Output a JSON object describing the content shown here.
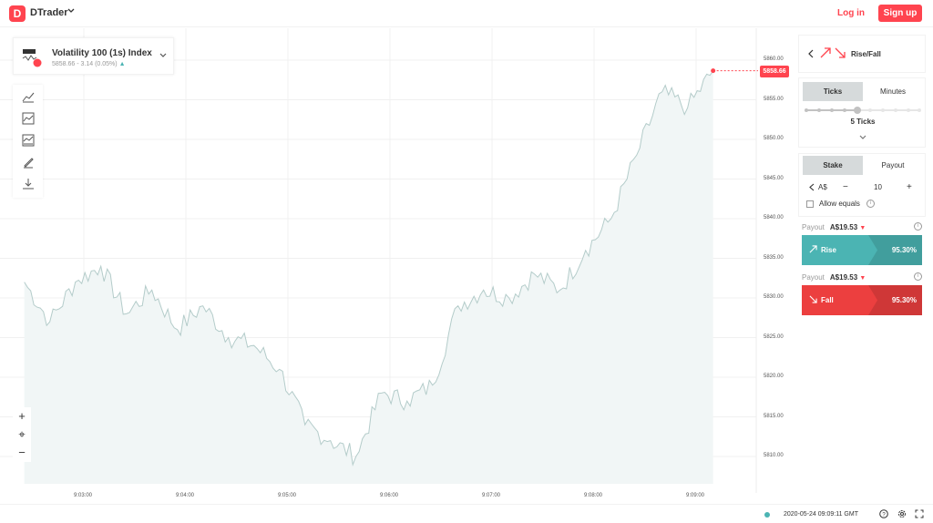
{
  "header": {
    "logo_letter": "D",
    "app_name": "DTrader",
    "login_label": "Log in",
    "signup_label": "Sign up"
  },
  "symbol": {
    "name": "Volatility 100 (1s) Index",
    "price_change": "5858.66 - 3.14 (0.05%)",
    "icon_badge": "1s"
  },
  "chart": {
    "current_price": "5858.66",
    "y_ticks": [
      "5860.00",
      "5855.00",
      "5850.00",
      "5845.00",
      "5840.00",
      "5835.00",
      "5830.00",
      "5825.00",
      "5820.00",
      "5815.00",
      "5810.00"
    ],
    "x_ticks": [
      "9:03:00",
      "9:04:00",
      "9:05:00",
      "9:06:00",
      "9:07:00",
      "9:08:00",
      "9:09:00"
    ],
    "line_color": "#b4ccca",
    "area_color": "#f1f6f6"
  },
  "chart_data": {
    "type": "area",
    "x": [
      "9:02:25",
      "9:02:40",
      "9:02:55",
      "9:03:10",
      "9:03:25",
      "9:03:40",
      "9:03:55",
      "9:04:10",
      "9:04:25",
      "9:04:40",
      "9:04:55",
      "9:05:10",
      "9:05:25",
      "9:05:40",
      "9:05:55",
      "9:06:10",
      "9:06:25",
      "9:06:40",
      "9:06:55",
      "9:07:10",
      "9:07:25",
      "9:07:40",
      "9:07:55",
      "9:08:10",
      "9:08:25",
      "9:08:40",
      "9:08:55",
      "9:09:10"
    ],
    "values": [
      5832,
      5827,
      5832,
      5834,
      5828,
      5831,
      5826,
      5829,
      5825,
      5824,
      5821,
      5814,
      5812,
      5810,
      5818,
      5817,
      5819,
      5829,
      5831,
      5830,
      5833,
      5831,
      5836,
      5840,
      5848,
      5856,
      5854,
      5858.66
    ],
    "ylim": [
      5806,
      5862
    ],
    "grid": true
  },
  "toolbar": {
    "tools": [
      "chart-type-icon",
      "indicators-icon",
      "templates-icon",
      "drawing-tools-icon",
      "download-icon"
    ]
  },
  "zoom": {
    "in": "+",
    "reset": "⌖",
    "out": "−"
  },
  "trade": {
    "type_label": "Rise/Fall",
    "duration_tabs": [
      "Ticks",
      "Minutes"
    ],
    "ticks_value": "5 Ticks",
    "amount_tabs": [
      "Stake",
      "Payout"
    ],
    "currency": "A$",
    "stake_value": "10",
    "minus": "−",
    "plus": "+",
    "allow_equals": "Allow equals",
    "rise": {
      "payout_label": "Payout",
      "payout_value": "A$19.53",
      "button_label": "Rise",
      "percent": "95.30%",
      "color": "#4bb4b3"
    },
    "fall": {
      "payout_label": "Payout",
      "payout_value": "A$19.53",
      "button_label": "Fall",
      "percent": "95.30%",
      "color": "#ec3f3f"
    }
  },
  "footer": {
    "datetime": "2020-05-24 09:09:11 GMT"
  }
}
